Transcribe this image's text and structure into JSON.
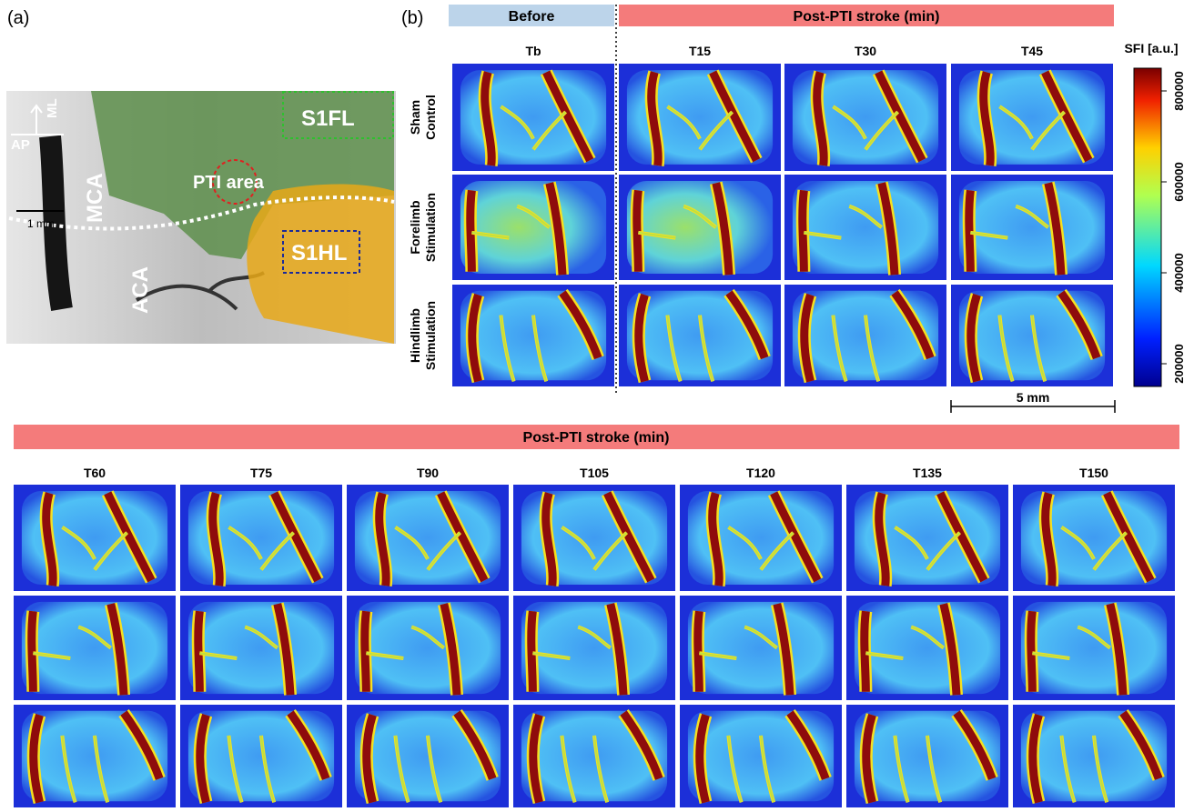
{
  "panel_a": {
    "label": "(a)",
    "orientation": {
      "ap": "AP",
      "ml": "ML"
    },
    "scale_bar": "1 mm",
    "regions": {
      "mca": "MCA",
      "aca": "ACA",
      "pti": "PTI area",
      "s1fl": "S1FL",
      "s1hl": "S1HL"
    }
  },
  "panel_b": {
    "label": "(b)",
    "headers": {
      "before": "Before",
      "post": "Post-PTI stroke (min)"
    },
    "columns": [
      "Tb",
      "T15",
      "T30",
      "T45"
    ],
    "rows": [
      [
        "Sham",
        "Control"
      ],
      [
        "Forelimb",
        "Stimulation"
      ],
      [
        "Hindlimb",
        "Stimulation"
      ]
    ],
    "scale_bar": "5 mm",
    "colorbar": {
      "label": "SFI [a.u.]",
      "lim": [
        150000,
        850000
      ],
      "ticks": [
        200000,
        400000,
        600000,
        800000
      ]
    }
  },
  "panel_c": {
    "header": "Post-PTI stroke (min)",
    "columns": [
      "T60",
      "T75",
      "T90",
      "T105",
      "T120",
      "T135",
      "T150"
    ]
  }
}
